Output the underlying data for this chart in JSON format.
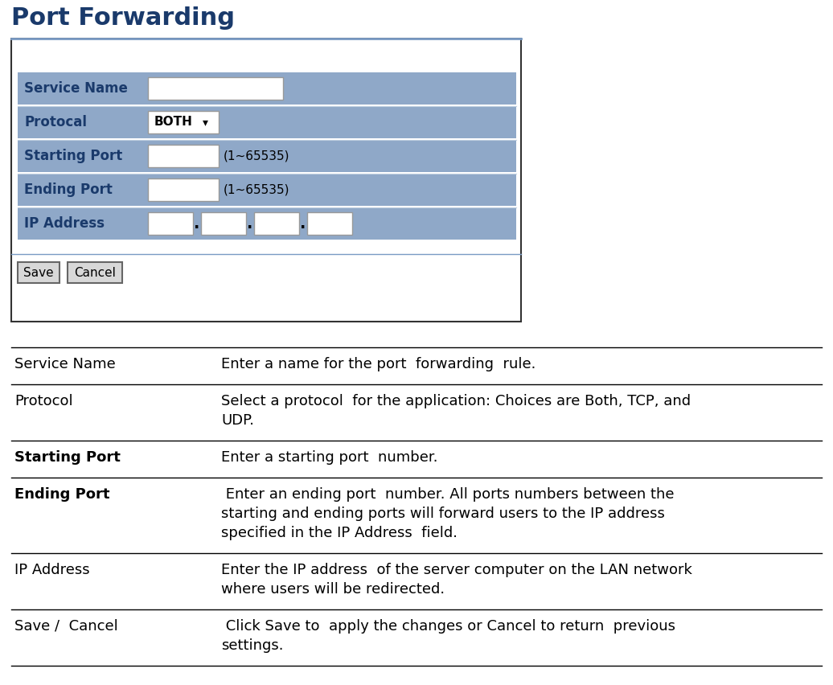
{
  "title": "Port Forwarding",
  "title_color": "#1a3a6b",
  "bg_color": "#ffffff",
  "panel_bg": "#8fa8c8",
  "label_color": "#1a3a6b",
  "form_rows": [
    {
      "label": "Service Name",
      "type": "text_input"
    },
    {
      "label": "Protocal",
      "type": "dropdown"
    },
    {
      "label": "Starting Port",
      "type": "port_input"
    },
    {
      "label": "Ending Port",
      "type": "port_input"
    },
    {
      "label": "IP Address",
      "type": "ip_input"
    }
  ],
  "table_rows": [
    {
      "term": "Service Name",
      "term_bold": false,
      "desc_lines": [
        "Enter a name for the port  forwarding  rule."
      ]
    },
    {
      "term": "Protocol",
      "term_bold": false,
      "desc_lines": [
        "Select a protocol  for the application: Choices are Both, TCP, and",
        "UDP."
      ]
    },
    {
      "term": "Starting Port",
      "term_bold": true,
      "desc_lines": [
        "Enter a starting port  number."
      ]
    },
    {
      "term": "Ending Port",
      "term_bold": true,
      "desc_lines": [
        " Enter an ending port  number. All ports numbers between the",
        "starting and ending ports will forward users to the IP address",
        "specified in the IP Address  field."
      ]
    },
    {
      "term": "IP Address",
      "term_bold": false,
      "desc_lines": [
        "Enter the IP address  of the server computer on the LAN network",
        "where users will be redirected."
      ]
    },
    {
      "term": "Save /  Cancel",
      "term_bold": false,
      "desc_lines": [
        " Click Save to  apply the changes or Cancel to return  previous",
        "settings."
      ]
    }
  ]
}
